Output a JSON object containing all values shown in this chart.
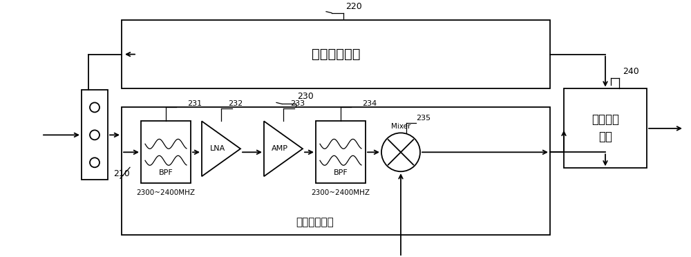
{
  "bg_color": "#ffffff",
  "line_color": "#000000",
  "label_210": "210",
  "label_220": "220",
  "label_230": "230",
  "label_240": "240",
  "label_231": "231",
  "label_232": "232",
  "label_233": "233",
  "label_234": "234",
  "label_235": "235",
  "text_first_unit": "第一处理单元",
  "text_second_unit": "第二处理单元",
  "text_if_filter": "中频滤波\n单元",
  "text_bpf": "BPF",
  "text_lna": "LNA",
  "text_amp": "AMP",
  "text_mixer": "Mixer",
  "text_freq1": "2300~2400MHZ",
  "text_freq2": "2300~2400MHZ",
  "figw": 10.0,
  "figh": 3.72,
  "dpi": 100
}
